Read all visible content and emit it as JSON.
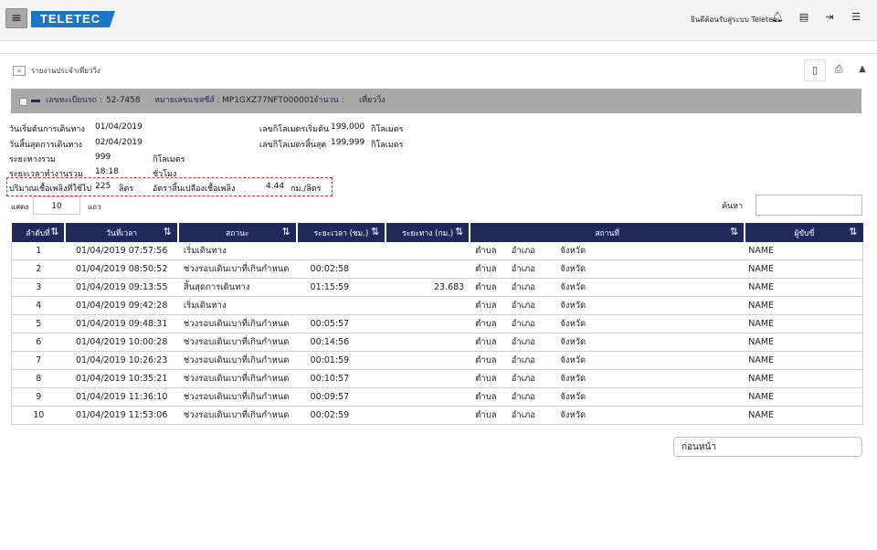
{
  "header": {
    "logo_text": "TELETEC",
    "welcome_text": "ยินดีต้อนรับสู่ระบบ Teletec",
    "icons": [
      "menu-icon",
      "bell-icon",
      "document-icon",
      "logout-icon",
      "list-icon"
    ]
  },
  "breadcrumb": {
    "label": "รายงานประจำเที่ยววิ่ง"
  },
  "toolbar": {
    "icons": [
      "file-icon",
      "print-icon",
      "collapse-icon"
    ]
  },
  "info_bar": {
    "plate_label": "เลขทะเบียนรถ :",
    "plate_value": "52-7458",
    "serial_label": "หมายเลขแชสซีส์ :",
    "serial_value": "MP1GXZ77NFT000001",
    "count_label": "จำนวน :",
    "count_value": "เที่ยววิ่ง"
  },
  "summary": {
    "start_date_label": "วันเริ่มต้นการเดินทาง",
    "start_date": "01/04/2019",
    "end_date_label": "วันสิ้นสุดการเดินทาง",
    "end_date": "02/04/2019",
    "distance_label": "ระยะทางรวม",
    "distance": "999",
    "distance_unit": "กิโลเมตร",
    "work_time_label": "ระยะเวลาทำงานรวม",
    "work_time": "18:18",
    "work_time_unit": "ชั่วโมง",
    "fuel_label": "ปริมาณเชื้อเพลิงที่ใช้ไป",
    "fuel": "225",
    "fuel_unit": "ลิตร",
    "rate_label": "อัตราสิ้นเปลืองเชื้อเพลิง",
    "rate": "4.44",
    "rate_unit": "กม./ลิตร",
    "odo_start_label": "เลขกิโลเมตรเริ่มต้น",
    "odo_start": "199,000",
    "odo_start_unit": "กิโลเมตร",
    "odo_end_label": "เลขกิโลเมตรสิ้นสุด",
    "odo_end": "199,999",
    "odo_end_unit": "กิโลเมตร"
  },
  "controls": {
    "show_label": "แสดง",
    "show_value": "10",
    "rows_label": "แถว",
    "search_label": "ค้นหา"
  },
  "table": {
    "headers": [
      "ลำดับที่",
      "วันที่เวลา",
      "สถานะ",
      "ระยะเวลา (ชม.)",
      "ระยะทาง (กม.)",
      "สถานที่",
      "ผู้ขับขี่"
    ],
    "rows": [
      [
        "1",
        "01/04/2019 07:57:56",
        "เริ่มเดินทาง",
        "",
        "",
        "ตำบล",
        "อำเภอ",
        "จังหวัด",
        "NAME"
      ],
      [
        "2",
        "01/04/2019 08:50:52",
        "ช่วงรอบเดินเบาที่เกินกำหนด",
        "00:02:58",
        "",
        "ตำบล",
        "อำเภอ",
        "จังหวัด",
        "NAME"
      ],
      [
        "3",
        "01/04/2019 09:13:55",
        "สิ้นสุดการเดินทาง",
        "01:15:59",
        "23.683",
        "ตำบล",
        "อำเภอ",
        "จังหวัด",
        "NAME"
      ],
      [
        "4",
        "01/04/2019 09:42:28",
        "เริ่มเดินทาง",
        "",
        "",
        "ตำบล",
        "อำเภอ",
        "จังหวัด",
        "NAME"
      ],
      [
        "5",
        "01/04/2019 09:48:31",
        "ช่วงรอบเดินเบาที่เกินกำหนด",
        "00:05:57",
        "",
        "ตำบล",
        "อำเภอ",
        "จังหวัด",
        "NAME"
      ],
      [
        "6",
        "01/04/2019 10:00:28",
        "ช่วงรอบเดินเบาที่เกินกำหนด",
        "00:14:56",
        "",
        "ตำบล",
        "อำเภอ",
        "จังหวัด",
        "NAME"
      ],
      [
        "7",
        "01/04/2019 10:26:23",
        "ช่วงรอบเดินเบาที่เกินกำหนด",
        "00:01:59",
        "",
        "ตำบล",
        "อำเภอ",
        "จังหวัด",
        "NAME"
      ],
      [
        "8",
        "01/04/2019 10:35:21",
        "ช่วงรอบเดินเบาที่เกินกำหนด",
        "00:10:57",
        "",
        "ตำบล",
        "อำเภอ",
        "จังหวัด",
        "NAME"
      ],
      [
        "9",
        "01/04/2019 11:36:10",
        "ช่วงรอบเดินเบาที่เกินกำหนด",
        "00:09:57",
        "",
        "ตำบล",
        "อำเภอ",
        "จังหวัด",
        "NAME"
      ],
      [
        "10",
        "01/04/2019 11:53:06",
        "ช่วงรอบเดินเบาที่เกินกำหนด",
        "00:02:59",
        "",
        "ตำบล",
        "อำเภอ",
        "จังหวัด",
        "NAME"
      ]
    ]
  },
  "pagination": {
    "prev_label": "ก่อนหน้า"
  },
  "colors": {
    "header_navy": "#1f2a5b",
    "info_bar_gray": "#a9a9a9",
    "logo_blue": "#1b77c6",
    "highlight_red": "#d9342b"
  }
}
